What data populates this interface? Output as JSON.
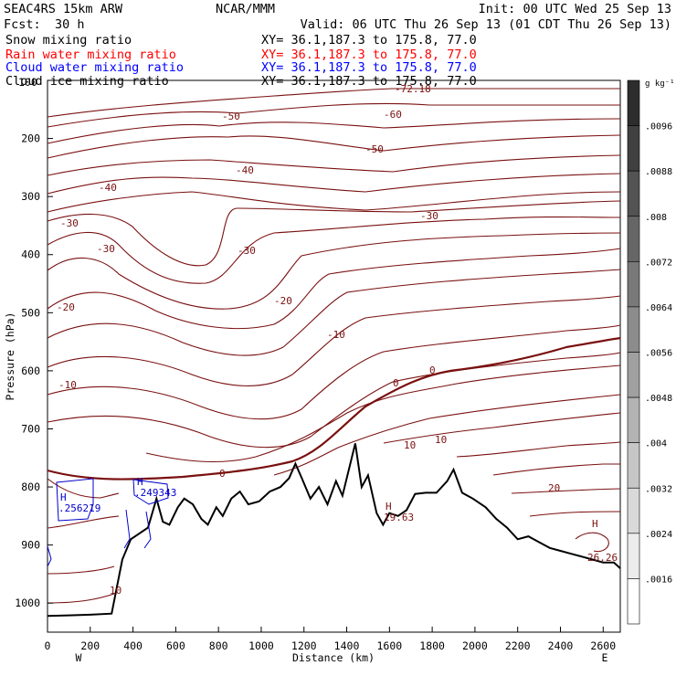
{
  "header": {
    "model": "SEAC4RS 15km ARW",
    "org": "NCAR/MMM",
    "init": "Init: 00 UTC Wed 25 Sep 13",
    "fcst_label": "Fcst:",
    "fcst_value": "30 h",
    "valid": "Valid: 06 UTC Thu 26 Sep 13 (01 CDT Thu 26 Sep 13)"
  },
  "fields": [
    {
      "name": "Snow mixing ratio",
      "xy": "XY=  36.1,187.3 to 175.8, 77.0",
      "color": "#000000"
    },
    {
      "name": "Rain water mixing ratio",
      "xy": "XY=  36.1,187.3 to 175.8, 77.0",
      "color": "#ff0000"
    },
    {
      "name": "Cloud water mixing ratio",
      "xy": "XY=  36.1,187.3 to 175.8, 77.0",
      "color": "#0000ff"
    },
    {
      "name": "Cloud ice mixing ratio",
      "xy": "XY=  36.1,187.3 to 175.8, 77.0",
      "color": "#000000"
    }
  ],
  "colorbar": {
    "unit": "g kg⁻¹",
    "labels": [
      ".0096",
      ".0088",
      ".008",
      ".0072",
      ".0064",
      ".0056",
      ".0048",
      ".004",
      ".0032",
      ".0024",
      ".0016"
    ]
  },
  "chart_data": {
    "type": "contour cross-section",
    "xlabel": "Distance (km)",
    "ylabel": "Pressure (hPa)",
    "xlim": [
      0,
      2680
    ],
    "ylim": [
      1050,
      100
    ],
    "x_ticks": [
      "0",
      "200",
      "400",
      "600",
      "800",
      "1000",
      "1200",
      "1400",
      "1600",
      "1800",
      "2000",
      "2200",
      "2400",
      "2600"
    ],
    "y_ticks": [
      "200",
      "300",
      "400",
      "500",
      "600",
      "700",
      "800",
      "900",
      "1000"
    ],
    "top_y_tick": "100",
    "end_labels": {
      "left": "W",
      "right": "E"
    },
    "temperature_contour_labels": [
      "-72.18",
      "-60",
      "-50",
      "-50",
      "-40",
      "-40",
      "-30",
      "-30",
      "-30",
      "-30",
      "-20",
      "-20",
      "-10",
      "-10",
      "0",
      "0",
      "0",
      "10",
      "10",
      "10",
      "20"
    ],
    "max_markers": [
      {
        "symbol": "H",
        "value": "19.63"
      },
      {
        "symbol": "H",
        "value": "26.26"
      }
    ],
    "cloud_water_markers": [
      {
        "symbol": "H",
        "value": ".256219"
      },
      {
        "symbol": "H",
        "value": ".249343"
      }
    ],
    "terrain_profile": [
      {
        "x": 0,
        "p": 1022
      },
      {
        "x": 100,
        "p": 1021
      },
      {
        "x": 200,
        "p": 1020
      },
      {
        "x": 300,
        "p": 1018
      },
      {
        "x": 350,
        "p": 925
      },
      {
        "x": 390,
        "p": 890
      },
      {
        "x": 430,
        "p": 880
      },
      {
        "x": 470,
        "p": 870
      },
      {
        "x": 510,
        "p": 820
      },
      {
        "x": 540,
        "p": 860
      },
      {
        "x": 570,
        "p": 865
      },
      {
        "x": 610,
        "p": 835
      },
      {
        "x": 640,
        "p": 820
      },
      {
        "x": 680,
        "p": 830
      },
      {
        "x": 720,
        "p": 855
      },
      {
        "x": 750,
        "p": 865
      },
      {
        "x": 790,
        "p": 835
      },
      {
        "x": 820,
        "p": 850
      },
      {
        "x": 860,
        "p": 820
      },
      {
        "x": 900,
        "p": 808
      },
      {
        "x": 940,
        "p": 830
      },
      {
        "x": 990,
        "p": 825
      },
      {
        "x": 1040,
        "p": 808
      },
      {
        "x": 1090,
        "p": 800
      },
      {
        "x": 1130,
        "p": 785
      },
      {
        "x": 1160,
        "p": 760
      },
      {
        "x": 1190,
        "p": 785
      },
      {
        "x": 1230,
        "p": 820
      },
      {
        "x": 1270,
        "p": 800
      },
      {
        "x": 1310,
        "p": 830
      },
      {
        "x": 1350,
        "p": 790
      },
      {
        "x": 1380,
        "p": 815
      },
      {
        "x": 1410,
        "p": 770
      },
      {
        "x": 1440,
        "p": 725
      },
      {
        "x": 1470,
        "p": 800
      },
      {
        "x": 1500,
        "p": 780
      },
      {
        "x": 1540,
        "p": 845
      },
      {
        "x": 1570,
        "p": 865
      },
      {
        "x": 1600,
        "p": 845
      },
      {
        "x": 1640,
        "p": 850
      },
      {
        "x": 1680,
        "p": 840
      },
      {
        "x": 1720,
        "p": 812
      },
      {
        "x": 1770,
        "p": 810
      },
      {
        "x": 1820,
        "p": 810
      },
      {
        "x": 1870,
        "p": 790
      },
      {
        "x": 1900,
        "p": 770
      },
      {
        "x": 1940,
        "p": 810
      },
      {
        "x": 1990,
        "p": 820
      },
      {
        "x": 2050,
        "p": 835
      },
      {
        "x": 2100,
        "p": 855
      },
      {
        "x": 2150,
        "p": 870
      },
      {
        "x": 2200,
        "p": 890
      },
      {
        "x": 2250,
        "p": 885
      },
      {
        "x": 2300,
        "p": 895
      },
      {
        "x": 2350,
        "p": 905
      },
      {
        "x": 2400,
        "p": 910
      },
      {
        "x": 2450,
        "p": 915
      },
      {
        "x": 2500,
        "p": 920
      },
      {
        "x": 2550,
        "p": 925
      },
      {
        "x": 2600,
        "p": 930
      },
      {
        "x": 2650,
        "p": 930
      },
      {
        "x": 2680,
        "p": 940
      }
    ],
    "grid": false,
    "legend": "top-left"
  }
}
